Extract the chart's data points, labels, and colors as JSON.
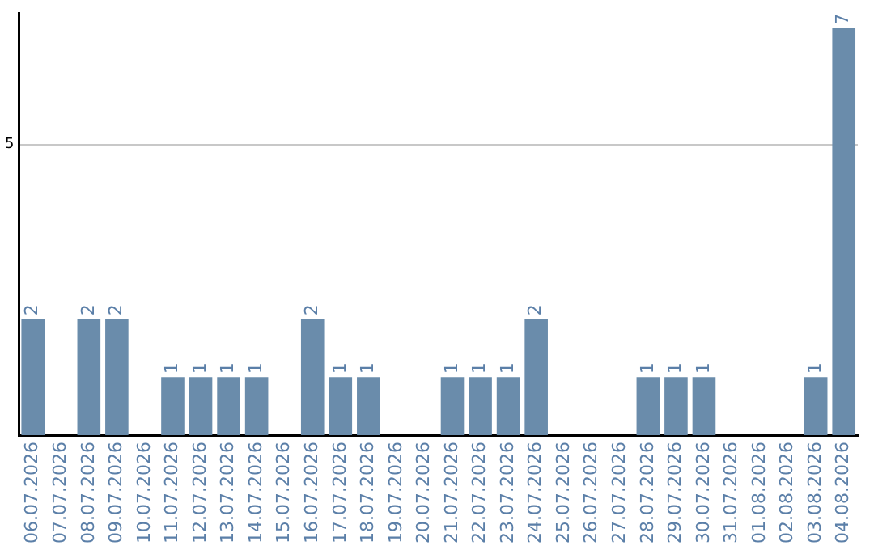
{
  "chart_data": {
    "type": "bar",
    "categories": [
      "06.07.2026",
      "07.07.2026",
      "08.07.2026",
      "09.07.2026",
      "10.07.2026",
      "11.07.2026",
      "12.07.2026",
      "13.07.2026",
      "14.07.2026",
      "15.07.2026",
      "16.07.2026",
      "17.07.2026",
      "18.07.2026",
      "19.07.2026",
      "20.07.2026",
      "21.07.2026",
      "22.07.2026",
      "23.07.2026",
      "24.07.2026",
      "25.07.2026",
      "26.07.2026",
      "27.07.2026",
      "28.07.2026",
      "29.07.2026",
      "30.07.2026",
      "31.07.2026",
      "01.08.2026",
      "02.08.2026",
      "03.08.2026",
      "04.08.2026"
    ],
    "values": [
      2,
      0,
      2,
      2,
      0,
      1,
      1,
      1,
      1,
      0,
      2,
      1,
      1,
      0,
      0,
      1,
      1,
      1,
      2,
      0,
      0,
      0,
      1,
      1,
      1,
      0,
      0,
      0,
      1,
      7
    ],
    "value_labels": [
      "2",
      null,
      "2",
      "2",
      null,
      "1",
      "1",
      "1",
      "1",
      null,
      "2",
      "1",
      "1",
      null,
      null,
      "1",
      "1",
      "1",
      "2",
      null,
      null,
      null,
      "1",
      "1",
      "1",
      null,
      null,
      null,
      "1",
      "7"
    ],
    "color": "#6a8cab",
    "ylim": [
      0,
      7.25
    ],
    "yticks": [
      5
    ],
    "grid": "y",
    "legend": false
  }
}
